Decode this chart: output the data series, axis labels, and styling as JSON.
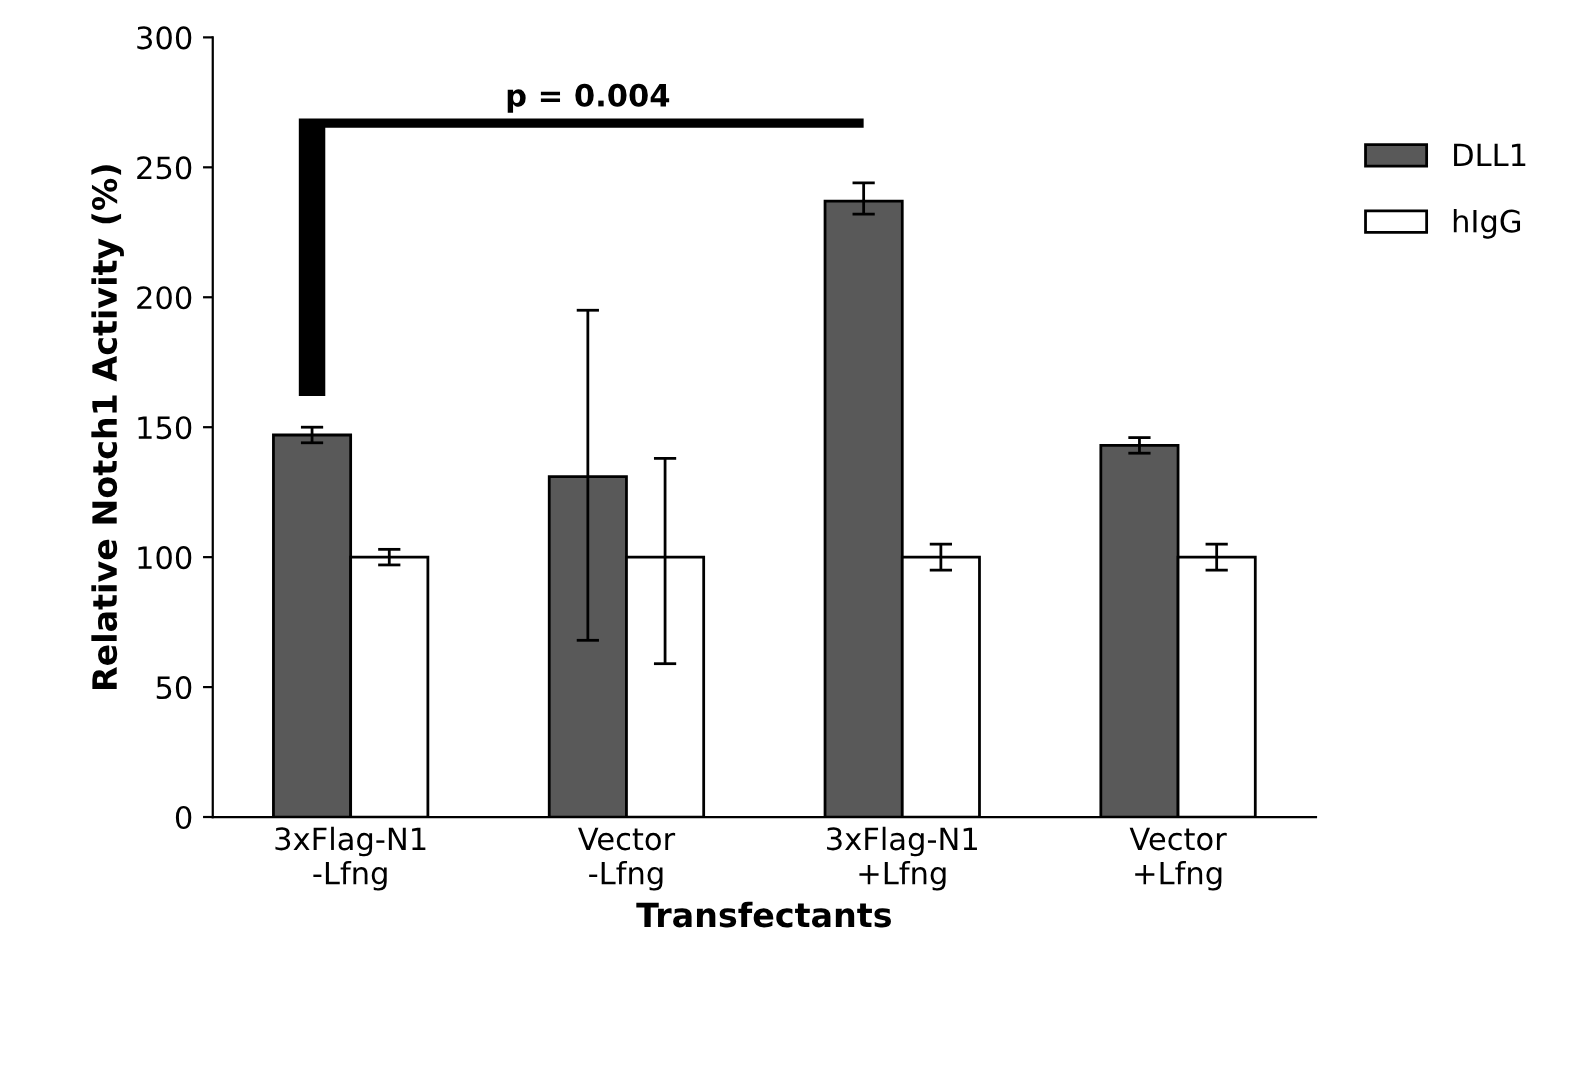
{
  "chart_data": {
    "type": "bar",
    "xlabel": "Transfectants",
    "ylabel": "Relative Notch1 Activity (%)",
    "categories": [
      "3xFlag-N1\n-Lfng",
      "Vector\n-Lfng",
      "3xFlag-N1\n+Lfng",
      "Vector\n+Lfng"
    ],
    "series": [
      {
        "name": "DLL1",
        "color": "#595959",
        "values": [
          147,
          131,
          237,
          143
        ],
        "errors": [
          3,
          [
            68,
            195
          ],
          [
            232,
            244
          ],
          3
        ]
      },
      {
        "name": "hIgG",
        "color": "#ffffff",
        "values": [
          100,
          100,
          100,
          100
        ],
        "errors": [
          3,
          [
            59,
            138
          ],
          [
            95,
            105
          ],
          [
            95,
            105
          ]
        ]
      }
    ],
    "ylim": [
      0,
      300
    ],
    "yticks": [
      0,
      50,
      100,
      150,
      200,
      250,
      300
    ],
    "grid": false,
    "legend": "right",
    "annotations": [
      "p = 0.004"
    ]
  }
}
